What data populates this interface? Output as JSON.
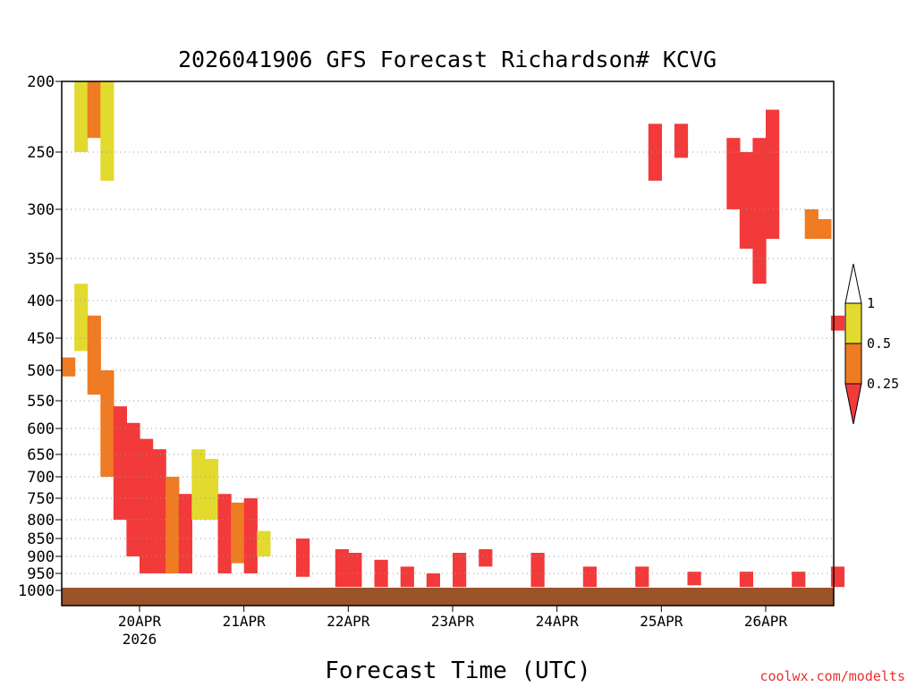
{
  "chart_data": {
    "type": "heatmap",
    "title": "2026041906 GFS Forecast Richardson# KCVG",
    "xlabel": "Forecast Time (UTC)",
    "credit": "coolwx.com/modelts",
    "y_axis": {
      "scale": "pressure (inverted, log-like)",
      "range_hpa": [
        1000,
        200
      ],
      "ticks": [
        "200",
        "250",
        "300",
        "350",
        "400",
        "450",
        "500",
        "550",
        "600",
        "650",
        "700",
        "750",
        "800",
        "850",
        "900",
        "950",
        "1000"
      ],
      "gridlines": "dotted at each tick"
    },
    "x_axis": {
      "start": "2026-04-19T06Z",
      "end": "2026-04-26T18Z",
      "ticks": [
        {
          "label": "20APR",
          "sub": "2026"
        },
        {
          "label": "21APR",
          "sub": ""
        },
        {
          "label": "22APR",
          "sub": ""
        },
        {
          "label": "23APR",
          "sub": ""
        },
        {
          "label": "24APR",
          "sub": ""
        },
        {
          "label": "25APR",
          "sub": ""
        },
        {
          "label": "26APR",
          "sub": ""
        }
      ]
    },
    "colorbar": {
      "labels": [
        "1",
        "0.5",
        "0.25"
      ],
      "classes": [
        {
          "range": "> 1",
          "color": "#ffffff"
        },
        {
          "range": "0.5 - 1",
          "color": "#e3da2f"
        },
        {
          "range": "0.25 - 0.5",
          "color": "#ef7b22"
        },
        {
          "range": "< 0.25",
          "color": "#f23a3a"
        }
      ]
    },
    "ground_color": "#9a532a",
    "cells": [
      {
        "t": "2026-04-19T09Z",
        "p": [
          200,
          250
        ],
        "c": "yellow"
      },
      {
        "t": "2026-04-19T12Z",
        "p": [
          200,
          240
        ],
        "c": "orange"
      },
      {
        "t": "2026-04-19T15Z",
        "p": [
          200,
          275
        ],
        "c": "yellow"
      },
      {
        "t": "2026-04-19T06Z",
        "p": [
          480,
          510
        ],
        "c": "orange"
      },
      {
        "t": "2026-04-19T09Z",
        "p": [
          380,
          470
        ],
        "c": "yellow"
      },
      {
        "t": "2026-04-19T12Z",
        "p": [
          420,
          540
        ],
        "c": "orange"
      },
      {
        "t": "2026-04-19T15Z",
        "p": [
          500,
          700
        ],
        "c": "orange"
      },
      {
        "t": "2026-04-19T18Z",
        "p": [
          560,
          800
        ],
        "c": "red"
      },
      {
        "t": "2026-04-19T21Z",
        "p": [
          590,
          900
        ],
        "c": "red"
      },
      {
        "t": "2026-04-20T00Z",
        "p": [
          620,
          950
        ],
        "c": "red"
      },
      {
        "t": "2026-04-20T03Z",
        "p": [
          640,
          950
        ],
        "c": "red"
      },
      {
        "t": "2026-04-20T06Z",
        "p": [
          700,
          950
        ],
        "c": "orange"
      },
      {
        "t": "2026-04-20T09Z",
        "p": [
          740,
          950
        ],
        "c": "red"
      },
      {
        "t": "2026-04-20T12Z",
        "p": [
          640,
          800
        ],
        "c": "yellow"
      },
      {
        "t": "2026-04-20T15Z",
        "p": [
          660,
          800
        ],
        "c": "yellow"
      },
      {
        "t": "2026-04-20T18Z",
        "p": [
          740,
          950
        ],
        "c": "red"
      },
      {
        "t": "2026-04-20T21Z",
        "p": [
          760,
          920
        ],
        "c": "orange"
      },
      {
        "t": "2026-04-21T00Z",
        "p": [
          750,
          950
        ],
        "c": "red"
      },
      {
        "t": "2026-04-21T03Z",
        "p": [
          830,
          900
        ],
        "c": "yellow"
      },
      {
        "t": "2026-04-21T12Z",
        "p": [
          850,
          960
        ],
        "c": "red"
      },
      {
        "t": "2026-04-21T21Z",
        "p": [
          880,
          990
        ],
        "c": "red"
      },
      {
        "t": "2026-04-22T00Z",
        "p": [
          890,
          990
        ],
        "c": "red"
      },
      {
        "t": "2026-04-22T06Z",
        "p": [
          910,
          990
        ],
        "c": "red"
      },
      {
        "t": "2026-04-22T12Z",
        "p": [
          930,
          990
        ],
        "c": "red"
      },
      {
        "t": "2026-04-22T18Z",
        "p": [
          950,
          990
        ],
        "c": "red"
      },
      {
        "t": "2026-04-23T00Z",
        "p": [
          890,
          990
        ],
        "c": "red"
      },
      {
        "t": "2026-04-23T06Z",
        "p": [
          880,
          930
        ],
        "c": "red"
      },
      {
        "t": "2026-04-23T18Z",
        "p": [
          890,
          990
        ],
        "c": "red"
      },
      {
        "t": "2026-04-24T06Z",
        "p": [
          930,
          990
        ],
        "c": "red"
      },
      {
        "t": "2026-04-24T18Z",
        "p": [
          930,
          990
        ],
        "c": "red"
      },
      {
        "t": "2026-04-25T06Z",
        "p": [
          945,
          985
        ],
        "c": "red"
      },
      {
        "t": "2026-04-25T18Z",
        "p": [
          945,
          990
        ],
        "c": "red"
      },
      {
        "t": "2026-04-26T06Z",
        "p": [
          945,
          990
        ],
        "c": "red"
      },
      {
        "t": "2026-04-26T15Z",
        "p": [
          930,
          990
        ],
        "c": "red"
      },
      {
        "t": "2026-04-24T21Z",
        "p": [
          230,
          275
        ],
        "c": "red"
      },
      {
        "t": "2026-04-25T03Z",
        "p": [
          230,
          255
        ],
        "c": "red"
      },
      {
        "t": "2026-04-25T15Z",
        "p": [
          240,
          300
        ],
        "c": "red"
      },
      {
        "t": "2026-04-25T18Z",
        "p": [
          250,
          340
        ],
        "c": "red"
      },
      {
        "t": "2026-04-25T21Z",
        "p": [
          240,
          380
        ],
        "c": "red"
      },
      {
        "t": "2026-04-26T00Z",
        "p": [
          220,
          330
        ],
        "c": "red"
      },
      {
        "t": "2026-04-26T09Z",
        "p": [
          300,
          330
        ],
        "c": "orange"
      },
      {
        "t": "2026-04-26T12Z",
        "p": [
          310,
          330
        ],
        "c": "orange"
      },
      {
        "t": "2026-04-26T15Z",
        "p": [
          420,
          440
        ],
        "c": "red"
      }
    ]
  }
}
